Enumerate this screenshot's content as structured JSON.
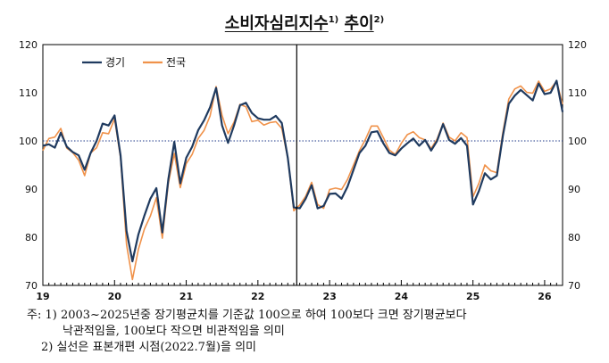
{
  "chart_data": {
    "type": "line",
    "title": "소비자심리지수",
    "title_note1": "1)",
    "title_suffix": "추이",
    "title_note2": "2)",
    "ylim": [
      70,
      120
    ],
    "yticks": [
      "70",
      "80",
      "90",
      "100",
      "110",
      "120"
    ],
    "xlim": [
      0,
      87
    ],
    "xticks": [
      {
        "label": "19",
        "at": 0
      },
      {
        "label": "20",
        "at": 12
      },
      {
        "label": "21",
        "at": 24
      },
      {
        "label": "22",
        "at": 36
      },
      {
        "label": "23",
        "at": 48
      },
      {
        "label": "24",
        "at": 60
      },
      {
        "label": "25",
        "at": 72
      },
      {
        "label": "26",
        "at": 84
      }
    ],
    "reference_line": 100,
    "break_at": 42.5,
    "legend": {
      "position": "top-left"
    },
    "series": [
      {
        "name": "경기",
        "color": "#1f3a5f",
        "values": [
          {
            "x": 0,
            "y": 99
          },
          {
            "x": 1,
            "y": 99.3
          },
          {
            "x": 2,
            "y": 98.6
          },
          {
            "x": 3,
            "y": 101.7
          },
          {
            "x": 4,
            "y": 98.8
          },
          {
            "x": 5,
            "y": 97.7
          },
          {
            "x": 6,
            "y": 97
          },
          {
            "x": 7,
            "y": 94
          },
          {
            "x": 8,
            "y": 97.5
          },
          {
            "x": 9,
            "y": 100
          },
          {
            "x": 10,
            "y": 103.6
          },
          {
            "x": 11,
            "y": 103.2
          },
          {
            "x": 12,
            "y": 105.3
          },
          {
            "x": 13,
            "y": 97
          },
          {
            "x": 14,
            "y": 81.3
          },
          {
            "x": 15,
            "y": 75
          },
          {
            "x": 16,
            "y": 80.6
          },
          {
            "x": 17,
            "y": 84.5
          },
          {
            "x": 18,
            "y": 88
          },
          {
            "x": 19,
            "y": 90.2
          },
          {
            "x": 20,
            "y": 81
          },
          {
            "x": 21,
            "y": 92
          },
          {
            "x": 22,
            "y": 99.8
          },
          {
            "x": 23,
            "y": 91.2
          },
          {
            "x": 24,
            "y": 96.5
          },
          {
            "x": 25,
            "y": 98.8
          },
          {
            "x": 26,
            "y": 102.2
          },
          {
            "x": 27,
            "y": 104.3
          },
          {
            "x": 28,
            "y": 107
          },
          {
            "x": 29,
            "y": 111
          },
          {
            "x": 30,
            "y": 103.2
          },
          {
            "x": 31,
            "y": 99.6
          },
          {
            "x": 32,
            "y": 103.2
          },
          {
            "x": 33,
            "y": 107.4
          },
          {
            "x": 34,
            "y": 107.9
          },
          {
            "x": 35,
            "y": 105.8
          },
          {
            "x": 36,
            "y": 104.7
          },
          {
            "x": 37,
            "y": 104.4
          },
          {
            "x": 38,
            "y": 104.4
          },
          {
            "x": 39,
            "y": 105.2
          },
          {
            "x": 40,
            "y": 103.7
          },
          {
            "x": 41,
            "y": 96.5
          },
          {
            "x": 42,
            "y": 86.2
          },
          {
            "x": 43,
            "y": 86
          },
          {
            "x": 44,
            "y": 88
          },
          {
            "x": 45,
            "y": 90.8
          },
          {
            "x": 46,
            "y": 86
          },
          {
            "x": 47,
            "y": 86.5
          },
          {
            "x": 48,
            "y": 89
          },
          {
            "x": 49,
            "y": 89.1
          },
          {
            "x": 50,
            "y": 88
          },
          {
            "x": 51,
            "y": 90.5
          },
          {
            "x": 52,
            "y": 94
          },
          {
            "x": 53,
            "y": 97.5
          },
          {
            "x": 54,
            "y": 99
          },
          {
            "x": 55,
            "y": 101.8
          },
          {
            "x": 56,
            "y": 102
          },
          {
            "x": 57,
            "y": 99.5
          },
          {
            "x": 58,
            "y": 97.5
          },
          {
            "x": 59,
            "y": 97
          },
          {
            "x": 60,
            "y": 98.4
          },
          {
            "x": 61,
            "y": 99.5
          },
          {
            "x": 62,
            "y": 100.5
          },
          {
            "x": 63,
            "y": 99
          },
          {
            "x": 64,
            "y": 100.2
          },
          {
            "x": 65,
            "y": 98
          },
          {
            "x": 66,
            "y": 100
          },
          {
            "x": 67,
            "y": 103.5
          },
          {
            "x": 68,
            "y": 100.2
          },
          {
            "x": 69,
            "y": 99.4
          },
          {
            "x": 70,
            "y": 100.6
          },
          {
            "x": 71,
            "y": 99
          },
          {
            "x": 72,
            "y": 86.8
          },
          {
            "x": 73,
            "y": 89.6
          },
          {
            "x": 74,
            "y": 93.3
          },
          {
            "x": 75,
            "y": 92
          },
          {
            "x": 76,
            "y": 92.8
          },
          {
            "x": 77,
            "y": 101
          },
          {
            "x": 78,
            "y": 107.7
          },
          {
            "x": 79,
            "y": 109.4
          },
          {
            "x": 80,
            "y": 110.6
          },
          {
            "x": 81,
            "y": 109.5
          },
          {
            "x": 82,
            "y": 108.4
          },
          {
            "x": 83,
            "y": 111.9
          },
          {
            "x": 84,
            "y": 109.7
          },
          {
            "x": 85,
            "y": 110
          },
          {
            "x": 86,
            "y": 112.5
          },
          {
            "x": 87,
            "y": 106
          }
        ]
      },
      {
        "name": "전국",
        "color": "#f0924a",
        "values": [
          {
            "x": 0,
            "y": 98
          },
          {
            "x": 1,
            "y": 100.5
          },
          {
            "x": 2,
            "y": 100.8
          },
          {
            "x": 3,
            "y": 102.6
          },
          {
            "x": 4,
            "y": 98.5
          },
          {
            "x": 5,
            "y": 97.6
          },
          {
            "x": 6,
            "y": 96
          },
          {
            "x": 7,
            "y": 92.8
          },
          {
            "x": 8,
            "y": 97.5
          },
          {
            "x": 9,
            "y": 98.6
          },
          {
            "x": 10,
            "y": 101.7
          },
          {
            "x": 11,
            "y": 101.5
          },
          {
            "x": 12,
            "y": 104.6
          },
          {
            "x": 13,
            "y": 96.5
          },
          {
            "x": 14,
            "y": 78.5
          },
          {
            "x": 15,
            "y": 71.2
          },
          {
            "x": 16,
            "y": 77.5
          },
          {
            "x": 17,
            "y": 81.7
          },
          {
            "x": 18,
            "y": 84.4
          },
          {
            "x": 19,
            "y": 88.2
          },
          {
            "x": 20,
            "y": 79.8
          },
          {
            "x": 21,
            "y": 91.2
          },
          {
            "x": 22,
            "y": 97.4
          },
          {
            "x": 23,
            "y": 90.3
          },
          {
            "x": 24,
            "y": 95.3
          },
          {
            "x": 25,
            "y": 97.2
          },
          {
            "x": 26,
            "y": 100.5
          },
          {
            "x": 27,
            "y": 102.2
          },
          {
            "x": 28,
            "y": 105.2
          },
          {
            "x": 29,
            "y": 111.3
          },
          {
            "x": 30,
            "y": 105.3
          },
          {
            "x": 31,
            "y": 101.5
          },
          {
            "x": 32,
            "y": 103.9
          },
          {
            "x": 33,
            "y": 107.6
          },
          {
            "x": 34,
            "y": 107.1
          },
          {
            "x": 35,
            "y": 104
          },
          {
            "x": 36,
            "y": 104.3
          },
          {
            "x": 37,
            "y": 103.3
          },
          {
            "x": 38,
            "y": 103.8
          },
          {
            "x": 39,
            "y": 104
          },
          {
            "x": 40,
            "y": 102.6
          },
          {
            "x": 41,
            "y": 96.4
          },
          {
            "x": 42,
            "y": 85.5
          },
          {
            "x": 43,
            "y": 86.7
          },
          {
            "x": 44,
            "y": 88.5
          },
          {
            "x": 45,
            "y": 91.4
          },
          {
            "x": 46,
            "y": 86.8
          },
          {
            "x": 47,
            "y": 86
          },
          {
            "x": 48,
            "y": 89.9
          },
          {
            "x": 49,
            "y": 90.2
          },
          {
            "x": 50,
            "y": 89.9
          },
          {
            "x": 51,
            "y": 92
          },
          {
            "x": 52,
            "y": 95
          },
          {
            "x": 53,
            "y": 98
          },
          {
            "x": 54,
            "y": 100.3
          },
          {
            "x": 55,
            "y": 103.1
          },
          {
            "x": 56,
            "y": 103.1
          },
          {
            "x": 57,
            "y": 100.7
          },
          {
            "x": 58,
            "y": 98.1
          },
          {
            "x": 59,
            "y": 97.2
          },
          {
            "x": 60,
            "y": 99.5
          },
          {
            "x": 61,
            "y": 101.3
          },
          {
            "x": 62,
            "y": 101.9
          },
          {
            "x": 63,
            "y": 100.7
          },
          {
            "x": 64,
            "y": 100.2
          },
          {
            "x": 65,
            "y": 98.4
          },
          {
            "x": 66,
            "y": 100.4
          },
          {
            "x": 67,
            "y": 103.7
          },
          {
            "x": 68,
            "y": 100.8
          },
          {
            "x": 69,
            "y": 100
          },
          {
            "x": 70,
            "y": 101.7
          },
          {
            "x": 71,
            "y": 100.7
          },
          {
            "x": 72,
            "y": 88.4
          },
          {
            "x": 73,
            "y": 91.2
          },
          {
            "x": 74,
            "y": 95
          },
          {
            "x": 75,
            "y": 93.8
          },
          {
            "x": 76,
            "y": 93.4
          },
          {
            "x": 77,
            "y": 101.7
          },
          {
            "x": 78,
            "y": 108.7
          },
          {
            "x": 79,
            "y": 110.8
          },
          {
            "x": 80,
            "y": 111.4
          },
          {
            "x": 81,
            "y": 110.1
          },
          {
            "x": 82,
            "y": 109.9
          },
          {
            "x": 83,
            "y": 112.4
          },
          {
            "x": 84,
            "y": 110.3
          },
          {
            "x": 85,
            "y": 110.8
          },
          {
            "x": 86,
            "y": 112.4
          },
          {
            "x": 87,
            "y": 107.6
          }
        ]
      }
    ]
  },
  "notes": {
    "prefix": "주: 1)",
    "line1": "2003~2025년중 장기평균치를 기준값 100으로 하여 100보다 크면 장기평균보다",
    "line2": "낙관적임을, 100보다 작으면 비관적임을 의미",
    "line3": "2) 실선은 표본개편 시점(2022.7월)을 의미"
  }
}
